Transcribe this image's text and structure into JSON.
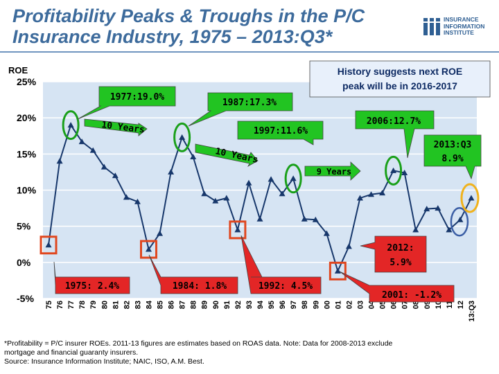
{
  "header": {
    "title_line1": "Profitability Peaks & Troughs in the P/C",
    "title_line2": "Insurance Industry, 1975 – 2013:Q3*",
    "logo_line1": "INSURANCE",
    "logo_line2": "INFORMATION",
    "logo_line3": "INSTITUTE",
    "logo_mark": "iii"
  },
  "colors": {
    "plot_bg": "#d6e4f3",
    "line": "#17376b",
    "callout_green": "#22c422",
    "callout_red": "#e32626",
    "peak_ring": "#1aa01a",
    "trough_box": "#e0471f",
    "latest_ring": "#f0b21c",
    "title": "#3d6b9c"
  },
  "chart_data": {
    "type": "line",
    "ylabel": "ROE",
    "ylim": [
      -5,
      25
    ],
    "yticks": [
      "25%",
      "20%",
      "15%",
      "10%",
      "5%",
      "0%",
      "-5%"
    ],
    "ytick_values": [
      25,
      20,
      15,
      10,
      5,
      0,
      -5
    ],
    "categories": [
      "75",
      "76",
      "77",
      "78",
      "79",
      "80",
      "81",
      "82",
      "83",
      "84",
      "85",
      "86",
      "87",
      "88",
      "89",
      "90",
      "91",
      "92",
      "93",
      "94",
      "95",
      "96",
      "97",
      "98",
      "99",
      "00",
      "01",
      "02",
      "03",
      "04",
      "05",
      "06",
      "07",
      "08",
      "09",
      "10",
      "11",
      "12",
      "13:Q3"
    ],
    "series": [
      {
        "name": "P/C insurer ROE",
        "values": [
          2.4,
          14.0,
          19.0,
          16.7,
          15.5,
          13.2,
          12.0,
          9.0,
          8.4,
          1.8,
          4.0,
          12.5,
          17.3,
          14.6,
          9.5,
          8.5,
          8.9,
          4.5,
          11.0,
          6.0,
          11.5,
          9.5,
          11.6,
          6.0,
          5.9,
          4.0,
          -1.2,
          2.2,
          8.9,
          9.4,
          9.6,
          12.7,
          12.4,
          4.5,
          7.4,
          7.5,
          4.5,
          5.9,
          8.9
        ]
      }
    ],
    "peaks": [
      {
        "category": "77",
        "value": 19.0
      },
      {
        "category": "87",
        "value": 17.3
      },
      {
        "category": "97",
        "value": 11.6
      },
      {
        "category": "06",
        "value": 12.7
      }
    ],
    "troughs": [
      {
        "category": "75",
        "value": 2.4
      },
      {
        "category": "84",
        "value": 1.8
      },
      {
        "category": "92",
        "value": 4.5
      },
      {
        "category": "01",
        "value": -1.2
      },
      {
        "category": "12",
        "value": 5.9
      }
    ],
    "latest": {
      "category": "13:Q3",
      "value": 8.9
    }
  },
  "callouts": {
    "history_line1": "History suggests next ROE",
    "history_line2": "peak will be in 2016-2017",
    "peak_1977": "1977:19.0%",
    "peak_1987": "1987:17.3%",
    "peak_1997": "1997:11.6%",
    "peak_2006": "2006:12.7%",
    "latest_line1": "2013:Q3",
    "latest_line2": "8.9%",
    "gap_10_years_a": "10 Years",
    "gap_10_years_b": "10 Years",
    "gap_9_years": "9 Years",
    "trough_2012_line1": "2012:",
    "trough_2012_line2": "5.9%",
    "trough_1975": "1975: 2.4%",
    "trough_1984": "1984: 1.8%",
    "trough_1992": "1992: 4.5%",
    "trough_2001": "2001: -1.2%"
  },
  "footnote": {
    "line1": "*Profitability =  P/C insurer ROEs. 2011-13 figures are estimates based on ROAS data.  Note:  Data for 2008-2013 exclude",
    "line2": "mortgage and financial guaranty insurers.",
    "line3": "Source:  Insurance Information Institute; NAIC, ISO, A.M. Best."
  }
}
